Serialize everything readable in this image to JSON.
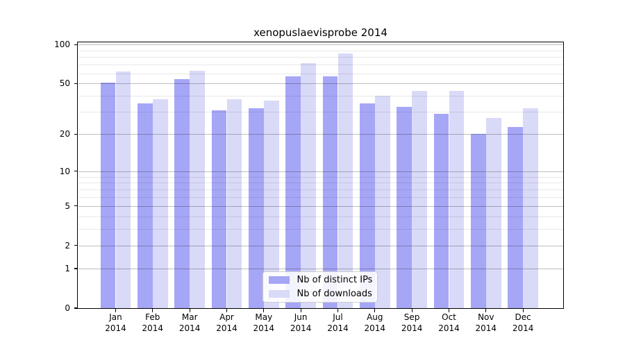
{
  "title": "xenopuslaevisprobe 2014",
  "colors": {
    "ips_bar": "#a6a6f6",
    "downloads_bar": "#d9d9f8",
    "axis_frame": "#000000",
    "major_grid": "#c3c3c3",
    "minor_grid": "#e8e8e8",
    "legend_border": "#cccccc",
    "background": "#ffffff"
  },
  "legend": {
    "items": [
      {
        "label": "Nb of distinct IPs",
        "color": "#a6a6f6"
      },
      {
        "label": "Nb of downloads",
        "color": "#d9d9f8"
      }
    ]
  },
  "chart_data": {
    "type": "bar",
    "title": "xenopuslaevisprobe 2014",
    "categories": [
      "Jan 2014",
      "Feb 2014",
      "Mar 2014",
      "Apr 2014",
      "May 2014",
      "Jun 2014",
      "Jul 2014",
      "Aug 2014",
      "Sep 2014",
      "Oct 2014",
      "Nov 2014",
      "Dec 2014"
    ],
    "x_ticks": [
      {
        "month": "Jan",
        "year": "2014"
      },
      {
        "month": "Feb",
        "year": "2014"
      },
      {
        "month": "Mar",
        "year": "2014"
      },
      {
        "month": "Apr",
        "year": "2014"
      },
      {
        "month": "May",
        "year": "2014"
      },
      {
        "month": "Jun",
        "year": "2014"
      },
      {
        "month": "Jul",
        "year": "2014"
      },
      {
        "month": "Aug",
        "year": "2014"
      },
      {
        "month": "Sep",
        "year": "2014"
      },
      {
        "month": "Oct",
        "year": "2014"
      },
      {
        "month": "Nov",
        "year": "2014"
      },
      {
        "month": "Dec",
        "year": "2014"
      }
    ],
    "series": [
      {
        "name": "Nb of distinct IPs",
        "color": "#a6a6f6",
        "values": [
          51,
          35,
          54,
          31,
          32,
          57,
          57,
          35,
          33,
          29,
          20,
          23
        ]
      },
      {
        "name": "Nb of downloads",
        "color": "#d9d9f8",
        "values": [
          62,
          38,
          63,
          38,
          37,
          72,
          85,
          40,
          44,
          44,
          27,
          32
        ]
      }
    ],
    "yscale": "log1p",
    "y_ticks": [
      "100",
      "50",
      "20",
      "10",
      "5",
      "2",
      "1",
      "0"
    ],
    "y_tick_values": [
      100,
      50,
      20,
      10,
      5,
      2,
      1,
      0
    ],
    "y_minor_gridlines": [
      3,
      4,
      6,
      7,
      8,
      9,
      30,
      40,
      60,
      70,
      80,
      90
    ],
    "ylim": [
      0,
      104
    ],
    "xlabel": "",
    "ylabel": "",
    "grid": true,
    "legend_position": "lower center"
  }
}
